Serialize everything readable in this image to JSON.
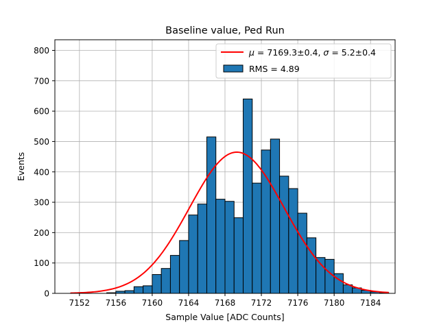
{
  "chart_data": {
    "type": "bar",
    "title": "Baseline value, Ped Run",
    "xlabel": "Sample Value [ADC Counts]",
    "ylabel": "Events",
    "xlim": [
      7149.3,
      7186.7
    ],
    "ylim": [
      0,
      835
    ],
    "grid": true,
    "legend_position": "top-right",
    "x_ticks": [
      7152,
      7156,
      7160,
      7164,
      7168,
      7172,
      7176,
      7180,
      7184
    ],
    "y_ticks": [
      0,
      100,
      200,
      300,
      400,
      500,
      600,
      700,
      800
    ],
    "bin_edges": [
      7152,
      7153,
      7154,
      7155,
      7156,
      7157,
      7158,
      7159,
      7160,
      7161,
      7162,
      7163,
      7164,
      7165,
      7166,
      7167,
      7168,
      7169,
      7170,
      7171,
      7172,
      7173,
      7174,
      7175,
      7176,
      7177,
      7178,
      7179,
      7180,
      7181,
      7182,
      7183,
      7184,
      7185,
      7186
    ],
    "histogram": {
      "name": "RMS = 4.89",
      "color": "#1f77b4",
      "counts": [
        0,
        0,
        0,
        2,
        7,
        9,
        22,
        25,
        62,
        82,
        125,
        174,
        258,
        294,
        515,
        310,
        303,
        249,
        640,
        363,
        472,
        508,
        386,
        345,
        264,
        183,
        118,
        112,
        65,
        28,
        18,
        10,
        5,
        2
      ]
    },
    "fit": {
      "type": "gaussian",
      "legend_mu": "μ",
      "legend_mid": " = 7169.3±0.4, ",
      "legend_sigma": "σ",
      "legend_tail": " = 5.2±0.4",
      "mu": 7169.3,
      "sigma": 5.2,
      "amplitude": 465,
      "x_range": [
        7151,
        7186
      ],
      "color": "#ff0000"
    }
  }
}
